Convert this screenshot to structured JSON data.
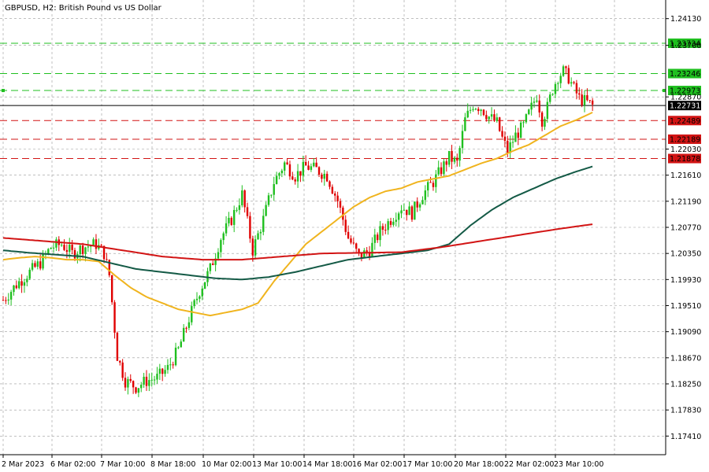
{
  "header": {
    "symbol": "GBPUSD",
    "timeframe": "H2",
    "description": "British Pound vs US Dollar",
    "title": "GBPUSD, H2:  British Pound vs US Dollar"
  },
  "colors": {
    "bull": "#1fbf1f",
    "bear": "#e00000",
    "grid": "#9a9a9a",
    "ma_short": "#f0b41e",
    "ma_mid": "#145a46",
    "ma_long": "#d21414",
    "level_green": "#1fbf1f",
    "level_red": "#d21414",
    "current_price": "#000000"
  },
  "chart_data": {
    "type": "candlestick",
    "y_ticks": [
      "1.24130",
      "1.23700",
      "1.22870",
      "1.22030",
      "1.21610",
      "1.21190",
      "1.20770",
      "1.20350",
      "1.19930",
      "1.19510",
      "1.19090",
      "1.18670",
      "1.18250",
      "1.17830",
      "1.17410"
    ],
    "x_ticks": [
      "2 Mar 2023",
      "6 Mar 02:00",
      "7 Mar 10:00",
      "8 Mar 18:00",
      "10 Mar 02:00",
      "13 Mar 10:00",
      "14 Mar 18:00",
      "16 Mar 02:00",
      "17 Mar 10:00",
      "20 Mar 18:00",
      "22 Mar 02:00",
      "23 Mar 10:00"
    ],
    "ylim": [
      1.1711,
      1.2443
    ],
    "price_levels": [
      {
        "label": "1.23734",
        "value": 1.23734,
        "kind": "resistance",
        "color": "green"
      },
      {
        "label": "1.23246",
        "value": 1.23246,
        "kind": "resistance",
        "color": "green"
      },
      {
        "label": "1.22973",
        "value": 1.22973,
        "kind": "resistance",
        "color": "green"
      },
      {
        "label": "1.22489",
        "value": 1.22489,
        "kind": "support",
        "color": "red"
      },
      {
        "label": "1.22189",
        "value": 1.22189,
        "kind": "support",
        "color": "red"
      },
      {
        "label": "1.21878",
        "value": 1.21878,
        "kind": "support",
        "color": "red"
      }
    ],
    "current_price": {
      "label": "1.22731",
      "value": 1.22731
    },
    "close_path": [
      [
        0,
        1.196
      ],
      [
        5,
        1.1985
      ],
      [
        10,
        1.2005
      ],
      [
        14,
        1.202
      ],
      [
        18,
        1.2045
      ],
      [
        22,
        1.205
      ],
      [
        26,
        1.2035
      ],
      [
        30,
        1.2045
      ],
      [
        35,
        1.205
      ],
      [
        38,
        1.2035
      ],
      [
        40,
        1.2
      ],
      [
        43,
        1.187
      ],
      [
        46,
        1.183
      ],
      [
        50,
        1.182
      ],
      [
        54,
        1.183
      ],
      [
        58,
        1.1835
      ],
      [
        62,
        1.185
      ],
      [
        66,
        1.188
      ],
      [
        70,
        1.193
      ],
      [
        74,
        1.1975
      ],
      [
        78,
        1.201
      ],
      [
        82,
        1.206
      ],
      [
        86,
        1.209
      ],
      [
        90,
        1.213
      ],
      [
        94,
        1.204
      ],
      [
        98,
        1.209
      ],
      [
        102,
        1.215
      ],
      [
        106,
        1.218
      ],
      [
        110,
        1.216
      ],
      [
        114,
        1.2175
      ],
      [
        118,
        1.217
      ],
      [
        122,
        1.216
      ],
      [
        126,
        1.212
      ],
      [
        130,
        1.206
      ],
      [
        134,
        1.203
      ],
      [
        138,
        1.204
      ],
      [
        142,
        1.207
      ],
      [
        146,
        1.209
      ],
      [
        150,
        1.211
      ],
      [
        154,
        1.21
      ],
      [
        158,
        1.213
      ],
      [
        162,
        1.215
      ],
      [
        165,
        1.217
      ],
      [
        168,
        1.219
      ],
      [
        171,
        1.218
      ],
      [
        174,
        1.225
      ],
      [
        177,
        1.2275
      ],
      [
        180,
        1.227
      ],
      [
        183,
        1.2255
      ],
      [
        186,
        1.2245
      ],
      [
        188,
        1.222
      ],
      [
        190,
        1.22
      ],
      [
        193,
        1.2225
      ],
      [
        196,
        1.224
      ],
      [
        198,
        1.226
      ],
      [
        201,
        1.229
      ],
      [
        203,
        1.225
      ],
      [
        205,
        1.227
      ],
      [
        207,
        1.23
      ],
      [
        209,
        1.232
      ],
      [
        211,
        1.2328
      ],
      [
        213,
        1.2318
      ],
      [
        215,
        1.23
      ],
      [
        217,
        1.2285
      ],
      [
        220,
        1.2278
      ],
      [
        222,
        1.2273
      ]
    ],
    "moving_averages": [
      {
        "period_color": "ma_short",
        "points": [
          [
            0,
            1.2025
          ],
          [
            6,
            1.2028
          ],
          [
            12,
            1.203
          ],
          [
            18,
            1.2028
          ],
          [
            24,
            1.2025
          ],
          [
            30,
            1.2025
          ],
          [
            36,
            1.2022
          ],
          [
            42,
            1.2
          ],
          [
            48,
            1.198
          ],
          [
            54,
            1.1965
          ],
          [
            60,
            1.1955
          ],
          [
            66,
            1.1945
          ],
          [
            72,
            1.194
          ],
          [
            78,
            1.1935
          ],
          [
            84,
            1.194
          ],
          [
            90,
            1.1945
          ],
          [
            96,
            1.1955
          ],
          [
            102,
            1.199
          ],
          [
            108,
            1.202
          ],
          [
            114,
            1.205
          ],
          [
            120,
            1.207
          ],
          [
            126,
            1.209
          ],
          [
            132,
            1.211
          ],
          [
            138,
            1.2125
          ],
          [
            144,
            1.2135
          ],
          [
            150,
            1.214
          ],
          [
            156,
            1.215
          ],
          [
            162,
            1.2155
          ],
          [
            168,
            1.216
          ],
          [
            174,
            1.217
          ],
          [
            180,
            1.218
          ],
          [
            186,
            1.2188
          ],
          [
            192,
            1.22
          ],
          [
            198,
            1.221
          ],
          [
            204,
            1.2225
          ],
          [
            210,
            1.224
          ],
          [
            216,
            1.225
          ],
          [
            222,
            1.2262
          ]
        ]
      },
      {
        "period_color": "ma_mid",
        "points": [
          [
            0,
            1.204
          ],
          [
            10,
            1.2036
          ],
          [
            20,
            1.2033
          ],
          [
            30,
            1.203
          ],
          [
            40,
            1.202
          ],
          [
            50,
            1.201
          ],
          [
            60,
            1.2005
          ],
          [
            70,
            1.2
          ],
          [
            80,
            1.1995
          ],
          [
            90,
            1.1993
          ],
          [
            100,
            1.1997
          ],
          [
            110,
            1.2005
          ],
          [
            120,
            1.2015
          ],
          [
            130,
            1.2025
          ],
          [
            140,
            1.203
          ],
          [
            150,
            1.2035
          ],
          [
            160,
            1.204
          ],
          [
            168,
            1.205
          ],
          [
            176,
            1.208
          ],
          [
            184,
            1.2105
          ],
          [
            192,
            1.2125
          ],
          [
            200,
            1.214
          ],
          [
            208,
            1.2155
          ],
          [
            216,
            1.2167
          ],
          [
            222,
            1.2175
          ]
        ]
      },
      {
        "period_color": "ma_long",
        "points": [
          [
            0,
            1.206
          ],
          [
            15,
            1.2055
          ],
          [
            30,
            1.205
          ],
          [
            45,
            1.204
          ],
          [
            60,
            1.203
          ],
          [
            75,
            1.2025
          ],
          [
            90,
            1.2025
          ],
          [
            105,
            1.203
          ],
          [
            120,
            1.2035
          ],
          [
            135,
            1.2036
          ],
          [
            150,
            1.2037
          ],
          [
            165,
            1.2045
          ],
          [
            180,
            1.2055
          ],
          [
            195,
            1.2065
          ],
          [
            210,
            1.2075
          ],
          [
            222,
            1.2082
          ]
        ]
      }
    ]
  }
}
